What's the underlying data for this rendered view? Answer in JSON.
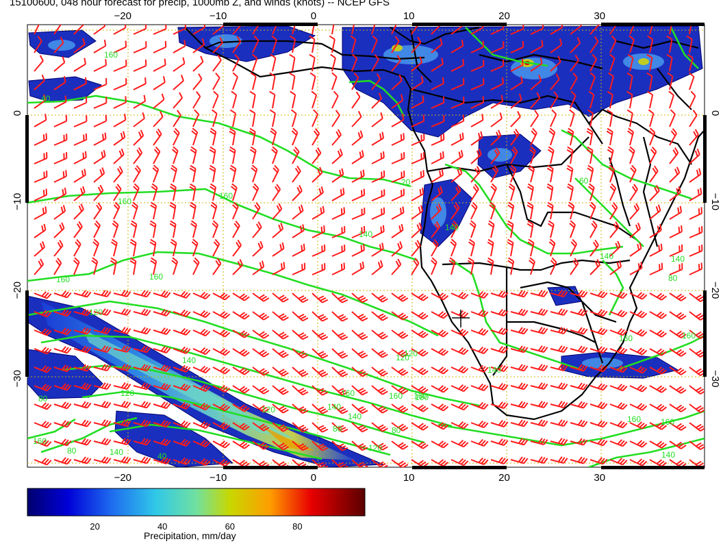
{
  "title": "15100600, 048 hour forecast for precip, 1000mb Z, and winds (knots) -- NCEP GFS",
  "axes": {
    "lon_ticks": [
      "−20",
      "−10",
      "0",
      "10",
      "20",
      "30"
    ],
    "lat_ticks": [
      "0",
      "−10",
      "−20",
      "−30"
    ],
    "lon_values": [
      -20,
      -10,
      0,
      10,
      20,
      30
    ],
    "lat_values": [
      0,
      -10,
      -20,
      -30
    ],
    "lon_range": [
      -30,
      41
    ],
    "lat_range": [
      -40,
      10
    ]
  },
  "contour_labels": [
    "160",
    "40",
    "160",
    "160",
    "160",
    "160",
    "120",
    "140",
    "120",
    "140",
    "160",
    "140",
    "120",
    "80",
    "80",
    "80",
    "40",
    "140",
    "160",
    "160",
    "160",
    "160",
    "140",
    "120",
    "20",
    "60",
    "140",
    "140",
    "160",
    "80",
    "140",
    "160",
    "140",
    "140",
    "160",
    "180",
    "120",
    "80",
    "120"
  ],
  "colorbar": {
    "ticks": [
      "20",
      "40",
      "60",
      "80"
    ],
    "tick_values": [
      20,
      40,
      60,
      80
    ],
    "range": [
      0,
      100
    ],
    "title": "Precipitation, mm/day"
  },
  "colors": {
    "contour": "#22dd22",
    "barb": "#ff1a1a",
    "coast": "#000000",
    "grid": "#c8b400"
  }
}
